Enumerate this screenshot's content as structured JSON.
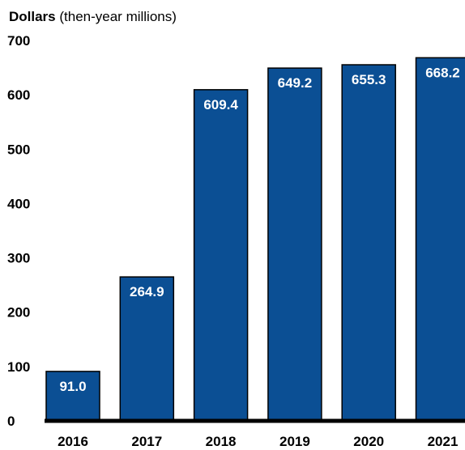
{
  "chart_data": {
    "type": "bar",
    "ylabel_bold": "Dollars",
    "ylabel_rest": " (then-year millions)",
    "categories": [
      "2016",
      "2017",
      "2018",
      "2019",
      "2020",
      "2021"
    ],
    "values": [
      91.0,
      264.9,
      609.4,
      649.2,
      655.3,
      668.2
    ],
    "data_labels": [
      "91.0",
      "264.9",
      "609.4",
      "649.2",
      "655.3",
      "668.2"
    ],
    "yticks": [
      0,
      100,
      200,
      300,
      400,
      500,
      600,
      700
    ],
    "ylim": [
      0,
      700
    ],
    "grid": false,
    "colors": {
      "bar": "#0b4f94",
      "bar_outline": "#000000",
      "label": "#ffffff",
      "axis": "#000000",
      "text": "#000000"
    }
  }
}
